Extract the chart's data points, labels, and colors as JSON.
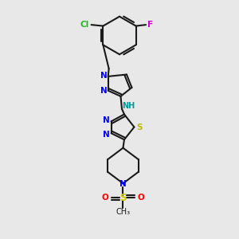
{
  "bg_color": "#e8e8e8",
  "bond_color": "#1a1a1a",
  "bond_width": 1.5,
  "figsize": [
    3.0,
    3.0
  ],
  "dpi": 100,
  "xlim": [
    0,
    10
  ],
  "ylim": [
    0,
    10
  ]
}
